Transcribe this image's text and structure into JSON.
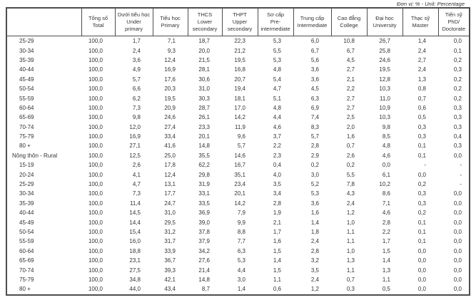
{
  "unit_label": "Đơn vị: % - Unit: Percentage",
  "table": {
    "columns": [
      {
        "lines": []
      },
      {
        "lines": [
          "Tổng số",
          "Total"
        ]
      },
      {
        "lines": [
          "Dưới tiểu học",
          "Under",
          "primary"
        ]
      },
      {
        "lines": [
          "Tiểu học",
          "Primary"
        ]
      },
      {
        "lines": [
          "THCS",
          "Lower",
          "secondary"
        ]
      },
      {
        "lines": [
          "THPT",
          "Upper",
          "secondary"
        ]
      },
      {
        "lines": [
          "Sơ cấp",
          "Pre-",
          "intermediate"
        ]
      },
      {
        "lines": [
          "Trung cấp",
          "Intermediate"
        ]
      },
      {
        "lines": [
          "Cao đẳng",
          "College"
        ]
      },
      {
        "lines": [
          "Đại học",
          "University"
        ]
      },
      {
        "lines": [
          "Thạc sỹ",
          "Master"
        ]
      },
      {
        "lines": [
          "Tiến sỹ",
          "PhD/",
          "Doctorate"
        ]
      }
    ],
    "rows": [
      {
        "label": "25-29",
        "section": false,
        "values": [
          "100,0",
          "1,7",
          "7,1",
          "18,7",
          "22,3",
          "5,3",
          "6,0",
          "10,8",
          "26,7",
          "1,4",
          "0,0"
        ]
      },
      {
        "label": "30-34",
        "section": false,
        "values": [
          "100,0",
          "2,4",
          "9,3",
          "20,0",
          "21,2",
          "5,5",
          "6,7",
          "6,7",
          "25,8",
          "2,4",
          "0,1"
        ]
      },
      {
        "label": "35-39",
        "section": false,
        "values": [
          "100,0",
          "3,6",
          "12,4",
          "21,5",
          "19,5",
          "5,3",
          "5,6",
          "4,5",
          "24,6",
          "2,7",
          "0,2"
        ]
      },
      {
        "label": "40-44",
        "section": false,
        "values": [
          "100,0",
          "4,9",
          "16,9",
          "28,1",
          "16,8",
          "4,8",
          "3,6",
          "2,7",
          "19,5",
          "2,4",
          "0,3"
        ]
      },
      {
        "label": "45-49",
        "section": false,
        "values": [
          "100,0",
          "5,7",
          "17,6",
          "30,6",
          "20,7",
          "5,4",
          "3,6",
          "2,1",
          "12,8",
          "1,3",
          "0,2"
        ]
      },
      {
        "label": "50-54",
        "section": false,
        "values": [
          "100,0",
          "6,6",
          "20,3",
          "31,0",
          "19,4",
          "4,7",
          "4,5",
          "2,2",
          "10,3",
          "0,8",
          "0,2"
        ]
      },
      {
        "label": "55-59",
        "section": false,
        "values": [
          "100,0",
          "6,2",
          "19,5",
          "30,3",
          "18,1",
          "5,1",
          "6,3",
          "2,7",
          "11,0",
          "0,7",
          "0,2"
        ]
      },
      {
        "label": "60-64",
        "section": false,
        "values": [
          "100,0",
          "7,3",
          "20,9",
          "28,7",
          "17,0",
          "4,8",
          "6,9",
          "2,7",
          "10,9",
          "0,6",
          "0,3"
        ]
      },
      {
        "label": "65-69",
        "section": false,
        "values": [
          "100,0",
          "9,8",
          "24,6",
          "26,1",
          "14,2",
          "4,4",
          "7,4",
          "2,5",
          "10,3",
          "0,5",
          "0,3"
        ]
      },
      {
        "label": "70-74",
        "section": false,
        "values": [
          "100,0",
          "12,0",
          "27,4",
          "23,3",
          "11,9",
          "4,6",
          "8,3",
          "2,0",
          "9,8",
          "0,3",
          "0,3"
        ]
      },
      {
        "label": "75-79",
        "section": false,
        "values": [
          "100,0",
          "16,9",
          "33,4",
          "20,1",
          "9,6",
          "3,7",
          "5,7",
          "1,6",
          "8,5",
          "0,3",
          "0,4"
        ]
      },
      {
        "label": "80 +",
        "section": false,
        "values": [
          "100,0",
          "27,1",
          "41,6",
          "14,8",
          "5,7",
          "2,2",
          "2,8",
          "0,7",
          "4,8",
          "0,1",
          "0,3"
        ]
      },
      {
        "label": "Nông thôn - Rural",
        "section": true,
        "values": [
          "100,0",
          "12,5",
          "25,0",
          "35,5",
          "14,6",
          "2,3",
          "2,9",
          "2,6",
          "4,6",
          "0,1",
          "0,0"
        ]
      },
      {
        "label": "15-19",
        "section": false,
        "values": [
          "100,0",
          "2,6",
          "17,8",
          "62,2",
          "16,7",
          "0,4",
          "0,2",
          "0,2",
          "0,0",
          "-",
          "-"
        ]
      },
      {
        "label": "20-24",
        "section": false,
        "values": [
          "100,0",
          "4,1",
          "12,4",
          "29,8",
          "35,1",
          "4,0",
          "3,0",
          "5,5",
          "6,1",
          "0,0",
          "-"
        ]
      },
      {
        "label": "25-29",
        "section": false,
        "values": [
          "100,0",
          "4,7",
          "13,1",
          "31,9",
          "23,4",
          "3,5",
          "5,2",
          "7,8",
          "10,2",
          "0,2",
          "-"
        ]
      },
      {
        "label": "30-34",
        "section": false,
        "values": [
          "100,0",
          "7,3",
          "17,7",
          "33,1",
          "20,1",
          "3,4",
          "5,3",
          "4,3",
          "8,6",
          "0,3",
          "0,0"
        ]
      },
      {
        "label": "35-39",
        "section": false,
        "values": [
          "100,0",
          "11,4",
          "24,7",
          "33,5",
          "14,2",
          "2,8",
          "3,6",
          "2,4",
          "7,1",
          "0,3",
          "0,0"
        ]
      },
      {
        "label": "40-44",
        "section": false,
        "values": [
          "100,0",
          "14,5",
          "31,0",
          "36,9",
          "7,9",
          "1,9",
          "1,6",
          "1,2",
          "4,6",
          "0,2",
          "0,0"
        ]
      },
      {
        "label": "45-49",
        "section": false,
        "values": [
          "100,0",
          "14,4",
          "29,5",
          "39,0",
          "9,9",
          "2,1",
          "1,4",
          "1,0",
          "2,8",
          "0,1",
          "0,0"
        ]
      },
      {
        "label": "50-54",
        "section": false,
        "values": [
          "100,0",
          "15,4",
          "31,2",
          "37,8",
          "8,8",
          "1,7",
          "1,8",
          "1,1",
          "2,2",
          "0,1",
          "0,0"
        ]
      },
      {
        "label": "55-59",
        "section": false,
        "values": [
          "100,0",
          "16,0",
          "31,7",
          "37,9",
          "7,7",
          "1,6",
          "2,4",
          "1,1",
          "1,7",
          "0,1",
          "0,0"
        ]
      },
      {
        "label": "60-64",
        "section": false,
        "values": [
          "100,0",
          "18,8",
          "33,9",
          "34,2",
          "6,3",
          "1,5",
          "2,8",
          "1,0",
          "1,5",
          "0,0",
          "0,0"
        ]
      },
      {
        "label": "65-69",
        "section": false,
        "values": [
          "100,0",
          "23,1",
          "36,7",
          "27,6",
          "5,3",
          "1,4",
          "3,2",
          "1,3",
          "1,4",
          "0,0",
          "0,0"
        ]
      },
      {
        "label": "70-74",
        "section": false,
        "values": [
          "100,0",
          "27,5",
          "39,3",
          "21,4",
          "4,4",
          "1,5",
          "3,5",
          "1,1",
          "1,3",
          "0,0",
          "0,0"
        ]
      },
      {
        "label": "75-79",
        "section": false,
        "values": [
          "100,0",
          "34,8",
          "42,1",
          "14,8",
          "3,0",
          "1,1",
          "2,4",
          "0,7",
          "1,1",
          "0,0",
          "0,0"
        ]
      },
      {
        "label": "80 +",
        "section": false,
        "values": [
          "100,0",
          "44,0",
          "43,4",
          "8,7",
          "1,4",
          "0,6",
          "1,2",
          "0,3",
          "0,5",
          "0,0",
          "0,0"
        ]
      }
    ]
  }
}
